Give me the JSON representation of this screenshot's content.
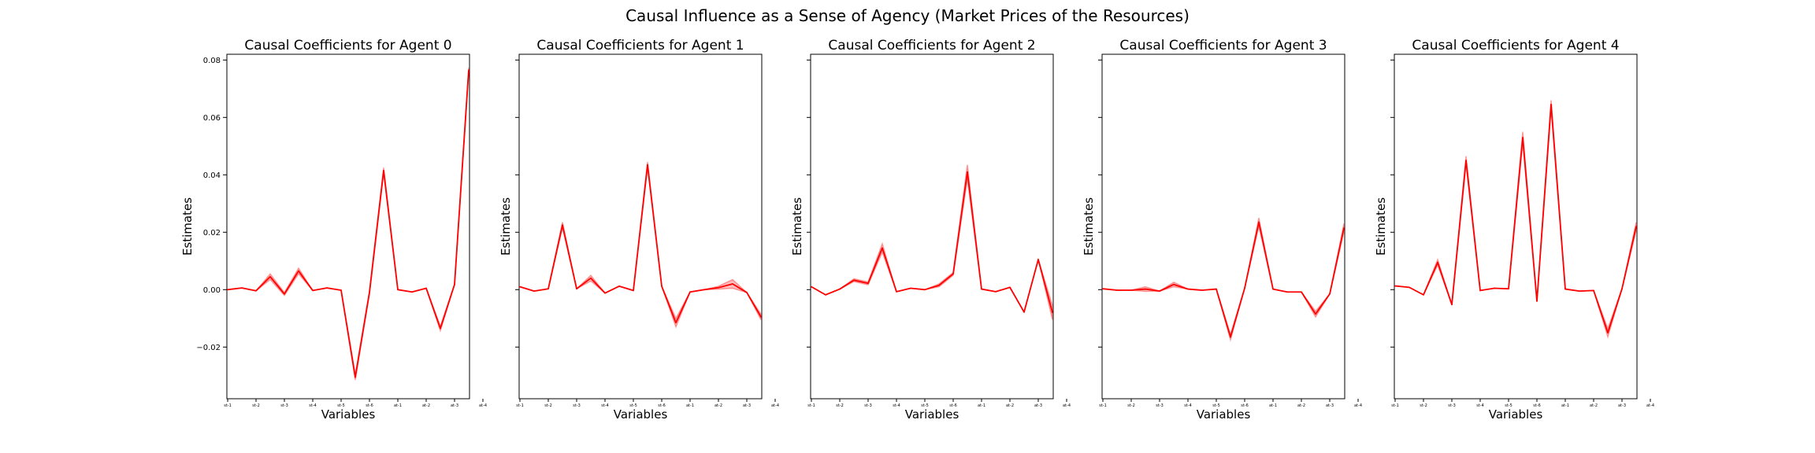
{
  "figure": {
    "suptitle": "Causal Influence as a Sense of Agency (Market Prices of the Resources)"
  },
  "colors": {
    "line": "#ff0000",
    "axes": "#000000",
    "background": "#ffffff"
  },
  "chart_data": [
    {
      "type": "line",
      "title": "Causal Coefficients for Agent 0",
      "xlabel": "Variables",
      "ylabel": "Estimates",
      "ylim": [
        -0.038,
        0.082
      ],
      "yticks": [
        -0.02,
        0.0,
        0.02,
        0.04,
        0.06,
        0.08
      ],
      "ytick_labels": [
        "−0.02",
        "0.00",
        "0.02",
        "0.04",
        "0.06",
        "0.08"
      ],
      "show_yticklabels": true,
      "xticks": [
        0,
        2,
        4,
        6,
        8,
        10,
        12,
        14,
        16,
        18
      ],
      "xtick_labels": [
        "st-1",
        "st-2",
        "st-3",
        "st-4",
        "st-5",
        "st-6",
        "at-1",
        "at-2",
        "at-3",
        "at-4"
      ],
      "series": [
        {
          "values": [
            0.0,
            0.0006,
            -0.0004,
            0.0045,
            -0.0015,
            0.0065,
            -0.0003,
            0.0006,
            -0.0002,
            -0.0305,
            -0.001,
            0.0415,
            0.0,
            -0.0008,
            0.0005,
            -0.0135,
            0.0018,
            0.0765
          ]
        }
      ],
      "band_width": [
        0.0,
        0.0,
        0.0,
        0.001,
        0.0005,
        0.001,
        0.0,
        0.0,
        0.0,
        0.001,
        0.0005,
        0.001,
        0.0,
        0.0,
        0.0,
        0.0008,
        0.0,
        0.0008
      ],
      "grid": false
    },
    {
      "type": "line",
      "title": "Causal Coefficients for Agent 1",
      "xlabel": "Variables",
      "ylabel": "Estimates",
      "ylim": [
        -0.038,
        0.082
      ],
      "yticks": [
        -0.02,
        0.0,
        0.02,
        0.04,
        0.06,
        0.08
      ],
      "show_yticklabels": false,
      "xticks": [
        0,
        2,
        4,
        6,
        8,
        10,
        12,
        14,
        16,
        18
      ],
      "xtick_labels": [
        "st-1",
        "st-2",
        "st-3",
        "st-4",
        "st-5",
        "st-6",
        "at-1",
        "at-2",
        "at-3",
        "at-4"
      ],
      "series": [
        {
          "values": [
            0.001,
            -0.0005,
            0.0003,
            0.0225,
            0.0003,
            0.004,
            -0.0012,
            0.0012,
            -0.0003,
            0.0435,
            0.0012,
            -0.0115,
            -0.0008,
            0.0,
            0.0007,
            0.002,
            -0.001,
            -0.0095
          ]
        }
      ],
      "band_width": [
        0.0,
        0.0,
        0.0,
        0.001,
        0.0,
        0.001,
        0.0,
        0.0,
        0.0,
        0.001,
        0.0,
        0.0015,
        0.0,
        0.0,
        0.0005,
        0.0015,
        0.0,
        0.001
      ],
      "grid": false
    },
    {
      "type": "line",
      "title": "Causal Coefficients for Agent 2",
      "xlabel": "Variables",
      "ylabel": "Estimates",
      "ylim": [
        -0.038,
        0.082
      ],
      "yticks": [
        -0.02,
        0.0,
        0.02,
        0.04,
        0.06,
        0.08
      ],
      "show_yticklabels": false,
      "xticks": [
        0,
        2,
        4,
        6,
        8,
        10,
        12,
        14,
        16,
        18
      ],
      "xtick_labels": [
        "st-1",
        "st-2",
        "st-3",
        "st-4",
        "st-5",
        "st-6",
        "at-1",
        "at-2",
        "at-3",
        "at-4"
      ],
      "series": [
        {
          "values": [
            0.001,
            -0.0018,
            0.0002,
            0.0033,
            0.0022,
            0.0145,
            -0.0007,
            0.0005,
            0.0,
            0.0015,
            0.0055,
            0.041,
            0.0002,
            -0.0007,
            0.0008,
            -0.0078,
            0.0105,
            -0.008
          ]
        }
      ],
      "band_width": [
        0.0,
        0.0,
        0.0,
        0.0005,
        0.0005,
        0.0015,
        0.0,
        0.0,
        0.0,
        0.0005,
        0.0005,
        0.0025,
        0.0,
        0.0,
        0.0,
        0.0,
        0.0,
        0.0025
      ],
      "grid": false
    },
    {
      "type": "line",
      "title": "Causal Coefficients for Agent 3",
      "xlabel": "Variables",
      "ylabel": "Estimates",
      "ylim": [
        -0.038,
        0.082
      ],
      "yticks": [
        -0.02,
        0.0,
        0.02,
        0.04,
        0.06,
        0.08
      ],
      "show_yticklabels": false,
      "xticks": [
        0,
        2,
        4,
        6,
        8,
        10,
        12,
        14,
        16,
        18
      ],
      "xtick_labels": [
        "st-1",
        "st-2",
        "st-3",
        "st-4",
        "st-5",
        "st-6",
        "at-1",
        "at-2",
        "at-3",
        "at-4"
      ],
      "series": [
        {
          "values": [
            0.0003,
            -0.0002,
            -0.0002,
            0.0002,
            -0.0005,
            0.0018,
            0.0002,
            -0.0002,
            0.0002,
            -0.0165,
            0.0005,
            0.0235,
            0.0002,
            -0.0008,
            -0.0008,
            -0.0085,
            -0.0015,
            0.0215
          ]
        }
      ],
      "band_width": [
        0.0,
        0.0,
        0.0,
        0.0008,
        0.0,
        0.0008,
        0.0,
        0.0,
        0.0,
        0.001,
        0.0,
        0.0015,
        0.0,
        0.0,
        0.0,
        0.001,
        0.0,
        0.0015
      ],
      "grid": false
    },
    {
      "type": "line",
      "title": "Causal Coefficients for Agent 4",
      "xlabel": "Variables",
      "ylabel": "Estimates",
      "ylim": [
        -0.038,
        0.082
      ],
      "yticks": [
        -0.02,
        0.0,
        0.02,
        0.04,
        0.06,
        0.08
      ],
      "show_yticklabels": false,
      "xticks": [
        0,
        2,
        4,
        6,
        8,
        10,
        12,
        14,
        16,
        18
      ],
      "xtick_labels": [
        "st-1",
        "st-2",
        "st-3",
        "st-4",
        "st-5",
        "st-6",
        "at-1",
        "at-2",
        "at-3",
        "at-4"
      ],
      "series": [
        {
          "values": [
            0.0013,
            0.0008,
            -0.0018,
            0.0095,
            -0.0052,
            0.045,
            -0.0003,
            0.0005,
            0.0003,
            0.053,
            -0.004,
            0.0645,
            0.0002,
            -0.0005,
            -0.0003,
            -0.015,
            0.0003,
            0.022
          ]
        }
      ],
      "band_width": [
        0.0,
        0.0,
        0.0,
        0.001,
        0.0,
        0.0015,
        0.0,
        0.0,
        0.0,
        0.002,
        0.0,
        0.0015,
        0.0,
        0.0,
        0.0,
        0.0015,
        0.0,
        0.0015
      ],
      "grid": false
    }
  ]
}
